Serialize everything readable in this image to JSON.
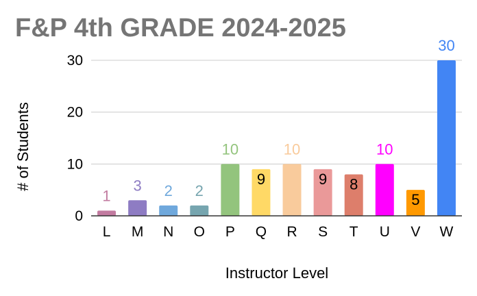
{
  "chart_data": {
    "type": "bar",
    "title": "F&P 4th GRADE 2024-2025",
    "xlabel": "Instructor Level",
    "ylabel": "# of Students",
    "ylim": [
      0,
      30
    ],
    "yticks": [
      0,
      10,
      20,
      30
    ],
    "grid": true,
    "legend": "none",
    "categories": [
      "L",
      "M",
      "N",
      "O",
      "P",
      "Q",
      "R",
      "S",
      "T",
      "U",
      "V",
      "W"
    ],
    "values": [
      1,
      3,
      2,
      2,
      10,
      9,
      10,
      9,
      8,
      10,
      5,
      30
    ],
    "bar_colors": [
      "#c27ba0",
      "#8e7cc3",
      "#6fa8dc",
      "#76a5af",
      "#93c47d",
      "#ffd966",
      "#f9cb9c",
      "#ea9999",
      "#dd7e6b",
      "#ff00ff",
      "#ff9900",
      "#4285f4"
    ],
    "label_colors": [
      "#c27ba0",
      "#8e7cc3",
      "#6fa8dc",
      "#76a5af",
      "#93c47d",
      "#000000",
      "#f9cb9c",
      "#000000",
      "#000000",
      "#ff00ff",
      "#000000",
      "#4285f4"
    ],
    "label_positions": [
      "above",
      "above",
      "above",
      "above",
      "above",
      "inside",
      "above",
      "inside",
      "inside",
      "above",
      "inside",
      "above"
    ]
  }
}
